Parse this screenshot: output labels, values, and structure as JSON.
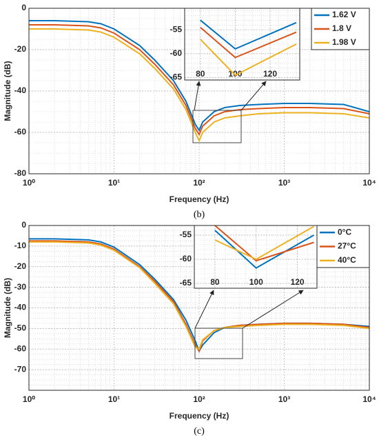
{
  "chart_data": [
    {
      "type": "line",
      "caption": "(b)",
      "xlabel": "Frequency (Hz)",
      "ylabel": "Magnitude (dB)",
      "log_x": true,
      "grid": true,
      "minor_grid": true,
      "legend": "northeast",
      "xlim": [
        1,
        10000
      ],
      "ylim": [
        -80,
        0
      ],
      "xticks": [
        {
          "value": 1,
          "label": "10⁰"
        },
        {
          "value": 10,
          "label": "10¹"
        },
        {
          "value": 100,
          "label": "10²"
        },
        {
          "value": 1000,
          "label": "10³"
        },
        {
          "value": 10000,
          "label": "10⁴"
        }
      ],
      "yticks": [
        -80,
        -60,
        -40,
        -20,
        0
      ],
      "x": [
        1,
        2,
        5,
        7,
        10,
        20,
        30,
        50,
        70,
        90,
        100,
        110,
        150,
        200,
        300,
        500,
        1000,
        2000,
        5000,
        10000
      ],
      "series": [
        {
          "name": "1.62 V",
          "color": "#0072BD",
          "values": [
            -6,
            -6,
            -6.5,
            -7.5,
            -10,
            -18,
            -25,
            -35,
            -45,
            -56,
            -59,
            -55,
            -50,
            -48,
            -47,
            -46.5,
            -46,
            -46,
            -46.5,
            -50
          ]
        },
        {
          "name": "1.8 V",
          "color": "#D95319",
          "values": [
            -8,
            -8,
            -8.5,
            -9.5,
            -12,
            -20,
            -27,
            -37,
            -47,
            -58,
            -61,
            -57,
            -52,
            -50,
            -49,
            -48.5,
            -48,
            -48,
            -48.5,
            -51
          ]
        },
        {
          "name": "1.98 V",
          "color": "#EDB120",
          "values": [
            -10,
            -10,
            -10.5,
            -11.5,
            -14,
            -22,
            -29,
            -39,
            -49,
            -60,
            -64,
            -60,
            -55,
            -53,
            -52,
            -51,
            -50.5,
            -50.5,
            -51,
            -53
          ]
        }
      ]
    },
    {
      "type": "line",
      "grid": true,
      "minor_grid": true,
      "xlim": [
        71,
        137
      ],
      "ylim": [
        -65.5,
        -50.5
      ],
      "xticks": [
        80,
        100,
        120
      ],
      "yticks": [
        -65,
        -60,
        -55
      ],
      "x": [
        80,
        100,
        135
      ],
      "series": [
        {
          "color": "#0072BD",
          "values": [
            -53,
            -59,
            -53.5
          ]
        },
        {
          "color": "#D95319",
          "values": [
            -54.5,
            -60.8,
            -55.5
          ]
        },
        {
          "color": "#EDB120",
          "values": [
            -57,
            -64.5,
            -58
          ]
        }
      ]
    },
    {
      "type": "line",
      "caption": "(c)",
      "xlabel": "Frequency (Hz)",
      "ylabel": "Magnitude (dB)",
      "log_x": true,
      "grid": true,
      "minor_grid": true,
      "legend": "northeast",
      "xlim": [
        1,
        10000
      ],
      "ylim": [
        -80,
        0
      ],
      "xticks": [
        {
          "value": 1,
          "label": "10⁰"
        },
        {
          "value": 10,
          "label": "10¹"
        },
        {
          "value": 100,
          "label": "10²"
        },
        {
          "value": 1000,
          "label": "10³"
        },
        {
          "value": 10000,
          "label": "10⁴"
        }
      ],
      "yticks": [
        -70,
        -60,
        -50,
        -40,
        -30,
        -20,
        -10,
        0
      ],
      "x": [
        1,
        2,
        5,
        7,
        10,
        20,
        30,
        50,
        70,
        90,
        100,
        110,
        150,
        200,
        300,
        500,
        1000,
        2000,
        5000,
        10000
      ],
      "series": [
        {
          "name": "0°C",
          "color": "#0072BD",
          "values": [
            -6.5,
            -6.5,
            -7,
            -8,
            -10.5,
            -19,
            -26,
            -36,
            -46,
            -56,
            -61,
            -58,
            -52,
            -49.5,
            -48.5,
            -48,
            -47.5,
            -47.5,
            -48,
            -49
          ]
        },
        {
          "name": "27°C",
          "color": "#D95319",
          "values": [
            -7.5,
            -7.5,
            -8,
            -9,
            -11.5,
            -20,
            -27,
            -37,
            -48,
            -58,
            -61,
            -56,
            -51,
            -49.5,
            -48.5,
            -48,
            -47.5,
            -47.5,
            -48,
            -49.5
          ]
        },
        {
          "name": "40°C",
          "color": "#EDB120",
          "values": [
            -8,
            -8,
            -8.5,
            -9.5,
            -12,
            -20.5,
            -28,
            -38,
            -49,
            -59,
            -60,
            -55.5,
            -51,
            -49.5,
            -49,
            -48.5,
            -48,
            -48,
            -48.5,
            -50
          ]
        }
      ]
    },
    {
      "type": "line",
      "grid": true,
      "minor_grid": true,
      "xlim": [
        70,
        129.5
      ],
      "ylim": [
        -66,
        -53
      ],
      "xticks": [
        80,
        100,
        120
      ],
      "yticks": [
        -65,
        -60,
        -55
      ],
      "x": [
        80,
        100,
        128
      ],
      "series": [
        {
          "color": "#0072BD",
          "values": [
            -54,
            -61.8,
            -55
          ]
        },
        {
          "color": "#D95319",
          "values": [
            -53,
            -60.3,
            -56.5
          ]
        },
        {
          "color": "#EDB120",
          "values": [
            -56,
            -60,
            -53.2
          ]
        }
      ]
    }
  ]
}
